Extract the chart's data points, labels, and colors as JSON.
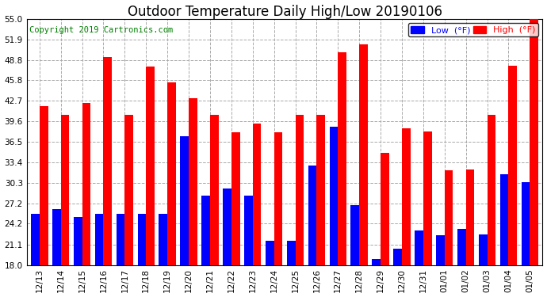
{
  "title": "Outdoor Temperature Daily High/Low 20190106",
  "copyright": "Copyright 2019 Cartronics.com",
  "legend_low": "Low  (°F)",
  "legend_high": "High  (°F)",
  "categories": [
    "12/13",
    "12/14",
    "12/15",
    "12/16",
    "12/17",
    "12/18",
    "12/19",
    "12/20",
    "12/21",
    "12/22",
    "12/23",
    "12/24",
    "12/25",
    "12/26",
    "12/27",
    "12/28",
    "12/29",
    "12/30",
    "12/31",
    "01/01",
    "01/02",
    "01/03",
    "01/04",
    "01/05"
  ],
  "high_values": [
    41.9,
    40.6,
    42.4,
    49.3,
    40.6,
    47.8,
    45.5,
    43.1,
    40.6,
    38.0,
    39.3,
    38.0,
    40.6,
    40.6,
    50.0,
    51.1,
    34.9,
    38.6,
    38.1,
    32.2,
    32.4,
    40.6,
    48.0,
    55.0
  ],
  "low_values": [
    25.7,
    26.4,
    25.2,
    25.7,
    25.7,
    25.7,
    25.7,
    37.4,
    28.4,
    29.5,
    28.4,
    21.6,
    21.6,
    32.9,
    38.8,
    27.0,
    18.9,
    20.5,
    23.2,
    22.5,
    23.4,
    22.6,
    31.6,
    30.4
  ],
  "ylim_min": 18.0,
  "ylim_max": 55.0,
  "yticks": [
    18.0,
    21.1,
    24.2,
    27.2,
    30.3,
    33.4,
    36.5,
    39.6,
    42.7,
    45.8,
    48.8,
    51.9,
    55.0
  ],
  "bar_width": 0.4,
  "low_color": "#0000FF",
  "high_color": "#FF0000",
  "bg_color": "#FFFFFF",
  "grid_color": "#AAAAAA",
  "title_fontsize": 12,
  "tick_fontsize": 7.5,
  "copyright_fontsize": 7.5,
  "fig_width": 6.9,
  "fig_height": 3.75,
  "dpi": 100
}
